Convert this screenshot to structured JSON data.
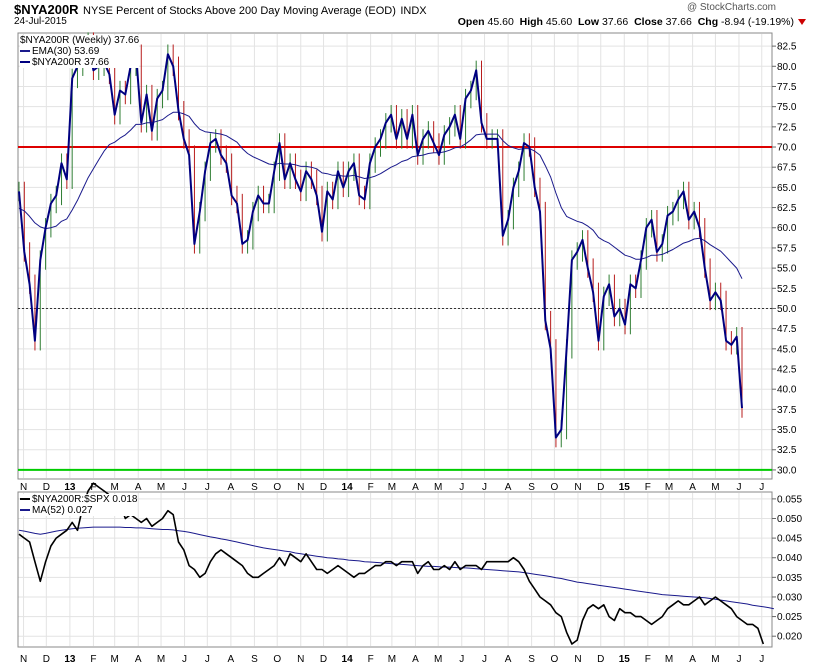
{
  "header": {
    "symbol": "$NYA200R",
    "description": "NYSE Percent of Stocks Above 200 Day Moving Average (EOD)",
    "exchange": "INDX",
    "date": "24-Jul-2015",
    "brand": "@ StockCharts.com",
    "open_label": "Open",
    "open": "45.60",
    "high_label": "High",
    "high": "45.60",
    "low_label": "Low",
    "low": "37.66",
    "close_label": "Close",
    "close": "37.66",
    "chg_label": "Chg",
    "chg": "-8.94 (-19.19%)"
  },
  "legend_top": {
    "main": "$NYA200R (Weekly) 37.66",
    "ema": "EMA(30) 53.69",
    "last": "$NYA200R 37.66"
  },
  "legend_bottom": {
    "ratio": "$NYA200R:$SPX 0.018",
    "ma": "MA(52) 0.027"
  },
  "colors": {
    "price_line": "#000080",
    "ema_line": "#1a1a8c",
    "ref_red": "#dd0000",
    "ref_green": "#00cc00",
    "bar_up": "#2e7d32",
    "bar_down": "#b71c1c",
    "grid": "#e3e3e3"
  },
  "chart_data": [
    {
      "type": "line",
      "title": "$NYA200R NYSE Percent of Stocks Above 200 Day Moving Average (EOD)",
      "ylim": [
        29,
        84
      ],
      "yticks": [
        "82.5",
        "80.0",
        "77.5",
        "75.0",
        "72.5",
        "70.0",
        "67.5",
        "65.0",
        "62.5",
        "60.0",
        "57.5",
        "55.0",
        "52.5",
        "50.0",
        "47.5",
        "45.0",
        "42.5",
        "40.0",
        "37.5",
        "35.0",
        "32.5",
        "30.0"
      ],
      "xticks": [
        "N",
        "D",
        "13",
        "F",
        "M",
        "A",
        "M",
        "J",
        "J",
        "A",
        "S",
        "O",
        "N",
        "D",
        "14",
        "F",
        "M",
        "A",
        "M",
        "J",
        "J",
        "A",
        "S",
        "O",
        "N",
        "D",
        "15",
        "F",
        "M",
        "A",
        "M",
        "J",
        "J",
        "A"
      ],
      "x_start": "2012-10-26",
      "reference_lines": [
        {
          "value": 70,
          "color": "red"
        },
        {
          "value": 50,
          "style": "dotted"
        },
        {
          "value": 30,
          "color": "green"
        }
      ],
      "series": [
        {
          "name": "$NYA200R",
          "values": [
            64.5,
            57,
            53,
            46,
            56,
            60,
            63,
            64,
            68,
            66,
            78.5,
            80,
            81.5,
            83,
            79.5,
            80,
            80.5,
            79,
            74,
            77,
            76.5,
            80,
            81.5,
            73,
            76.5,
            72,
            76,
            77,
            81.5,
            80,
            74.5,
            71,
            69,
            58,
            62,
            67,
            70.5,
            71,
            69,
            68,
            64,
            63,
            58,
            58.5,
            62,
            64,
            63,
            63,
            67,
            70.5,
            66,
            68,
            66,
            64.5,
            67,
            66,
            64,
            59.5,
            64.5,
            63.5,
            67,
            65,
            67,
            68,
            64,
            63.5,
            68,
            70,
            71,
            73,
            74,
            71,
            73.5,
            71,
            74,
            69,
            71,
            72,
            70.5,
            69,
            71.5,
            72.5,
            74,
            71,
            76,
            77,
            79.5,
            73,
            71,
            71,
            71,
            59,
            61,
            65,
            67,
            70.5,
            70,
            65,
            62,
            48.5,
            45,
            34,
            35,
            45,
            56,
            57,
            58.5,
            55,
            52,
            46,
            51.5,
            53,
            49,
            50,
            48,
            53,
            52.5,
            56,
            60,
            61,
            57,
            58,
            61.5,
            62,
            63.5,
            64.5,
            61,
            62,
            60,
            55,
            51,
            52,
            51,
            46,
            45.5,
            46.5,
            37.66
          ]
        },
        {
          "name": "EMA(30)",
          "values": [
            62.4,
            62.1,
            61.4,
            60.6,
            60.1,
            59.9,
            60.0,
            60.2,
            60.8,
            61.1,
            62.2,
            63.4,
            64.8,
            66.2,
            67.3,
            68.4,
            69.5,
            70.3,
            70.6,
            71.1,
            71.5,
            72.1,
            72.8,
            72.8,
            73.0,
            73.0,
            73.2,
            73.4,
            73.9,
            74.3,
            74.3,
            74.1,
            73.8,
            72.9,
            72.2,
            71.9,
            71.8,
            71.7,
            71.6,
            71.4,
            71.0,
            70.6,
            69.8,
            69.2,
            68.8,
            68.5,
            68.2,
            67.9,
            67.8,
            68.0,
            67.9,
            67.9,
            67.8,
            67.6,
            67.6,
            67.5,
            67.3,
            66.8,
            66.7,
            66.5,
            66.5,
            66.4,
            66.4,
            66.5,
            66.3,
            66.1,
            66.2,
            66.4,
            66.7,
            67.1,
            67.5,
            67.8,
            68.2,
            68.4,
            68.8,
            68.9,
            69.0,
            69.2,
            69.3,
            69.3,
            69.4,
            69.6,
            69.9,
            70.0,
            70.4,
            70.9,
            71.5,
            71.6,
            71.6,
            71.6,
            71.6,
            70.8,
            70.2,
            69.9,
            69.7,
            69.8,
            69.8,
            69.5,
            69.0,
            67.7,
            66.3,
            64.3,
            62.5,
            61.4,
            61.1,
            60.8,
            60.6,
            60.2,
            59.7,
            58.8,
            58.4,
            58.1,
            57.6,
            57.1,
            56.6,
            56.4,
            56.1,
            56.1,
            56.3,
            56.6,
            56.6,
            56.7,
            57.0,
            57.3,
            57.7,
            58.1,
            58.3,
            58.6,
            58.7,
            58.4,
            57.9,
            57.5,
            57.1,
            56.4,
            55.7,
            55.0,
            53.69
          ]
        }
      ]
    },
    {
      "type": "line",
      "title": "$NYA200R:$SPX",
      "ylim": [
        0.0175,
        0.0565
      ],
      "yticks": [
        "0.055",
        "0.050",
        "0.045",
        "0.040",
        "0.035",
        "0.030",
        "0.025",
        "0.020"
      ],
      "xticks": [
        "N",
        "D",
        "13",
        "F",
        "M",
        "A",
        "M",
        "J",
        "J",
        "A",
        "S",
        "O",
        "N",
        "D",
        "14",
        "F",
        "M",
        "A",
        "M",
        "J",
        "J",
        "A",
        "S",
        "O",
        "N",
        "D",
        "15",
        "F",
        "M",
        "A",
        "M",
        "J",
        "J",
        "A"
      ],
      "series": [
        {
          "name": "$NYA200R:$SPX",
          "values": [
            0.046,
            0.045,
            0.044,
            0.039,
            0.034,
            0.039,
            0.043,
            0.045,
            0.046,
            0.047,
            0.049,
            0.047,
            0.053,
            0.057,
            0.059,
            0.058,
            0.057,
            0.056,
            0.055,
            0.054,
            0.05,
            0.051,
            0.05,
            0.049,
            0.05,
            0.048,
            0.049,
            0.05,
            0.052,
            0.051,
            0.044,
            0.042,
            0.038,
            0.037,
            0.035,
            0.036,
            0.039,
            0.041,
            0.042,
            0.041,
            0.04,
            0.039,
            0.038,
            0.036,
            0.035,
            0.035,
            0.036,
            0.037,
            0.038,
            0.04,
            0.038,
            0.041,
            0.04,
            0.039,
            0.041,
            0.039,
            0.037,
            0.037,
            0.036,
            0.037,
            0.038,
            0.037,
            0.036,
            0.035,
            0.036,
            0.036,
            0.037,
            0.038,
            0.038,
            0.039,
            0.039,
            0.038,
            0.039,
            0.039,
            0.039,
            0.036,
            0.038,
            0.039,
            0.037,
            0.037,
            0.038,
            0.037,
            0.039,
            0.037,
            0.038,
            0.038,
            0.038,
            0.037,
            0.039,
            0.039,
            0.039,
            0.039,
            0.039,
            0.04,
            0.039,
            0.037,
            0.034,
            0.032,
            0.03,
            0.029,
            0.028,
            0.026,
            0.025,
            0.021,
            0.018,
            0.019,
            0.024,
            0.027,
            0.028,
            0.027,
            0.028,
            0.025,
            0.024,
            0.027,
            0.026,
            0.026,
            0.025,
            0.025,
            0.024,
            0.023,
            0.024,
            0.025,
            0.027,
            0.028,
            0.029,
            0.028,
            0.028,
            0.029,
            0.03,
            0.028,
            0.029,
            0.03,
            0.029,
            0.028,
            0.027,
            0.025,
            0.024,
            0.023,
            0.023,
            0.022,
            0.018
          ]
        },
        {
          "name": "MA(52)",
          "values": [
            0.047,
            0.0468,
            0.0465,
            0.0462,
            0.046,
            0.0462,
            0.0465,
            0.0468,
            0.047,
            0.0472,
            0.0474,
            0.0475,
            0.0476,
            0.0477,
            0.0478,
            0.0478,
            0.0478,
            0.0478,
            0.0478,
            0.0478,
            0.0477,
            0.0477,
            0.0476,
            0.0476,
            0.0475,
            0.0474,
            0.0473,
            0.0472,
            0.0472,
            0.0471,
            0.0469,
            0.0467,
            0.0465,
            0.0462,
            0.0459,
            0.0456,
            0.0453,
            0.0451,
            0.0448,
            0.0446,
            0.0443,
            0.044,
            0.0437,
            0.0434,
            0.0431,
            0.0428,
            0.0425,
            0.0423,
            0.0421,
            0.0419,
            0.0417,
            0.0415,
            0.0412,
            0.041,
            0.0408,
            0.0406,
            0.0404,
            0.0402,
            0.04,
            0.0399,
            0.0397,
            0.0396,
            0.0394,
            0.0393,
            0.0392,
            0.039,
            0.0389,
            0.0388,
            0.0387,
            0.0386,
            0.0385,
            0.0384,
            0.0383,
            0.0382,
            0.0381,
            0.038,
            0.0379,
            0.0378,
            0.0378,
            0.0377,
            0.0376,
            0.0376,
            0.0375,
            0.0374,
            0.0374,
            0.0373,
            0.0372,
            0.0371,
            0.037,
            0.0369,
            0.0368,
            0.0367,
            0.0366,
            0.0365,
            0.0364,
            0.0362,
            0.036,
            0.0358,
            0.0356,
            0.0354,
            0.0352,
            0.0349,
            0.0347,
            0.0344,
            0.0341,
            0.0338,
            0.0336,
            0.0334,
            0.0332,
            0.033,
            0.0328,
            0.0326,
            0.0324,
            0.0322,
            0.032,
            0.0318,
            0.0316,
            0.0314,
            0.0312,
            0.031,
            0.0308,
            0.0306,
            0.0305,
            0.0304,
            0.0303,
            0.0302,
            0.0301,
            0.03,
            0.0299,
            0.0298,
            0.0296,
            0.0294,
            0.0292,
            0.029,
            0.0288,
            0.0286,
            0.0284,
            0.0282,
            0.0279,
            0.0277,
            0.0275,
            0.0273,
            0.027
          ]
        }
      ]
    }
  ]
}
